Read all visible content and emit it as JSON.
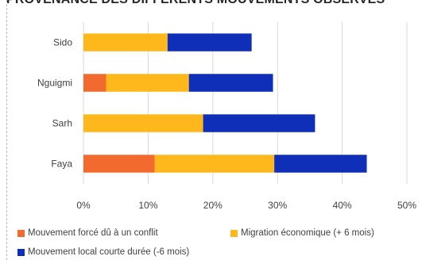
{
  "chart_data": {
    "type": "bar",
    "orientation": "horizontal",
    "stacked": true,
    "title": "PROVENANCE DES DIFFÉRENTS MOUVEMENTS OBSERVÉS",
    "categories": [
      "Sido",
      "Nguigmi",
      "Sarh",
      "Faya"
    ],
    "series": [
      {
        "name": "Mouvement forcé dû à un conflit",
        "color": "#f26a2e",
        "values": [
          0,
          3.5,
          0,
          11
        ]
      },
      {
        "name": "Migration économique (+ 6 mois)",
        "color": "#ffb81c",
        "values": [
          13,
          12.8,
          18.5,
          18.5
        ]
      },
      {
        "name": "Mouvement local courte durée (-6 mois)",
        "color": "#0f2fb8",
        "values": [
          13,
          13,
          17.3,
          14.3
        ]
      }
    ],
    "x_ticks": [
      "0%",
      "10%",
      "20%",
      "30%",
      "40%",
      "50%"
    ],
    "xlim": [
      0,
      50
    ],
    "grid": true,
    "legend_position": "bottom"
  }
}
